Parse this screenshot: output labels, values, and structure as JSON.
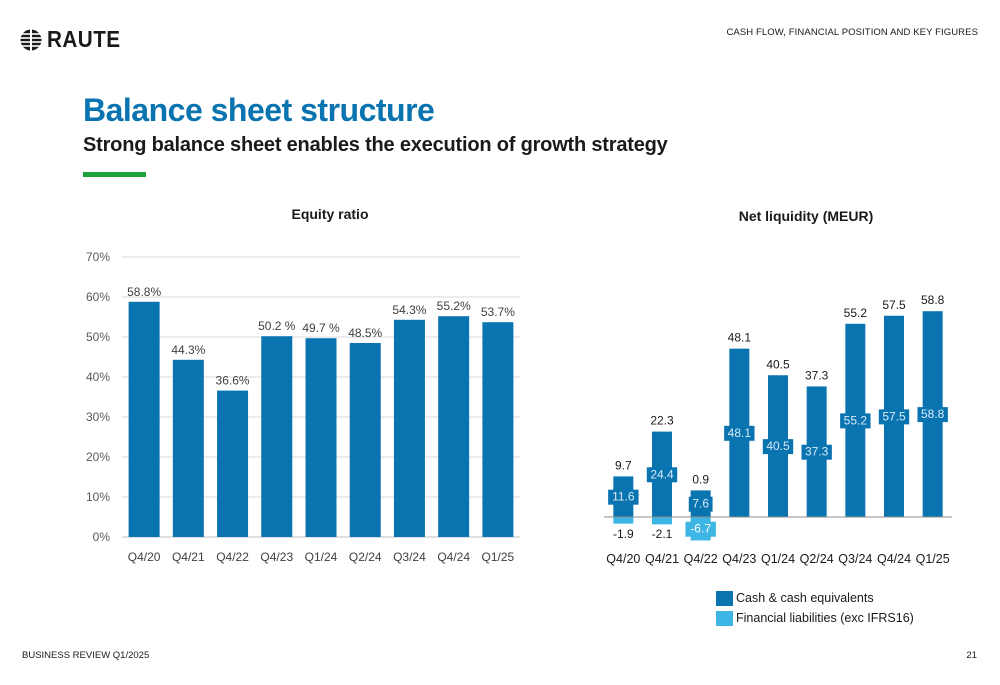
{
  "header": {
    "logo_text": "RAUTE",
    "section_label": "CASH FLOW, FINANCIAL POSITION AND KEY FIGURES"
  },
  "page": {
    "title": "Balance sheet structure",
    "subtitle": "Strong balance sheet enables the execution of growth strategy"
  },
  "footer": {
    "left": "BUSINESS REVIEW Q1/2025",
    "page_number": "21"
  },
  "colors": {
    "primary_bar": "#0a74b0",
    "liability_bar": "#3db6e6",
    "grid": "#d9d9d9",
    "accent": "#1aa33a"
  },
  "chart_data": [
    {
      "type": "bar",
      "title": "Equity ratio",
      "categories": [
        "Q4/20",
        "Q4/21",
        "Q4/22",
        "Q4/23",
        "Q1/24",
        "Q2/24",
        "Q3/24",
        "Q4/24",
        "Q1/25"
      ],
      "values": [
        58.8,
        44.3,
        36.6,
        50.2,
        49.7,
        48.5,
        54.3,
        55.2,
        53.7
      ],
      "data_labels": [
        "58.8%",
        "44.3%",
        "36.6%",
        "50.2 %",
        "49.7 %",
        "48.5%",
        "54.3%",
        "55.2%",
        "53.7%"
      ],
      "y_ticks": [
        "0%",
        "10%",
        "20%",
        "30%",
        "40%",
        "50%",
        "60%",
        "70%"
      ],
      "ylim": [
        0,
        70
      ],
      "grid": true,
      "legend": false
    },
    {
      "type": "bar",
      "title": "Net liquidity (MEUR)",
      "categories": [
        "Q4/20",
        "Q4/21",
        "Q4/22",
        "Q4/23",
        "Q1/24",
        "Q2/24",
        "Q3/24",
        "Q4/24",
        "Q1/25"
      ],
      "net_liquidity": [
        9.7,
        22.3,
        0.9,
        48.1,
        40.5,
        37.3,
        55.2,
        57.5,
        58.8
      ],
      "net_labels": [
        "9.7",
        "22.3",
        "0.9",
        "48.1",
        "40.5",
        "37.3",
        "55.2",
        "57.5",
        "58.8"
      ],
      "series": [
        {
          "name": "Cash & cash equivalents",
          "values": [
            11.6,
            24.4,
            7.6,
            48.1,
            40.5,
            37.3,
            55.2,
            57.5,
            58.8
          ],
          "labels": [
            "11.6",
            "24.4",
            "7.6",
            "48.1",
            "40.5",
            "37.3",
            "55.2",
            "57.5",
            "58.8"
          ]
        },
        {
          "name": "Financial liabilities (exc IFRS16)",
          "values": [
            -1.9,
            -2.1,
            -6.7,
            0,
            0,
            0,
            0,
            0,
            0
          ],
          "labels": [
            "-1.9",
            "-2.1",
            "-6.7",
            "",
            "",
            "",
            "",
            "",
            ""
          ]
        }
      ],
      "legend_position": "bottom",
      "grid": false
    }
  ]
}
